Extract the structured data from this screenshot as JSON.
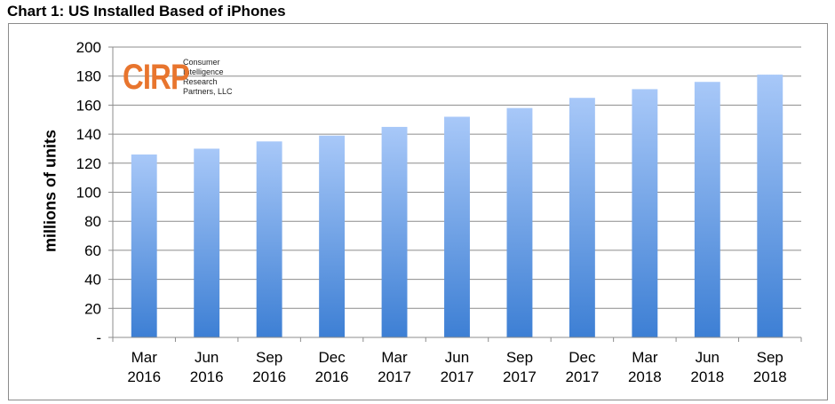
{
  "title": "Chart 1: US Installed Based of iPhones",
  "logo": {
    "mark": "CIRP",
    "lines": [
      "Consumer",
      "Intelligence",
      "Research",
      "Partners, LLC"
    ]
  },
  "colors": {
    "bar_top": "#a8c8f8",
    "bar_bottom": "#3d7fd4",
    "grid": "#8c8c8c",
    "logo": "#e8752e"
  },
  "chart_data": {
    "type": "bar",
    "title": "Chart 1: US Installed Based of iPhones",
    "xlabel": "",
    "ylabel": "millions of units",
    "ylim": [
      0,
      200
    ],
    "y_ticks": [
      0,
      20,
      40,
      60,
      80,
      100,
      120,
      140,
      160,
      180,
      200
    ],
    "y_tick_labels": [
      "-",
      "20",
      "40",
      "60",
      "80",
      "100",
      "120",
      "140",
      "160",
      "180",
      "200"
    ],
    "grid": true,
    "categories": [
      [
        "Mar",
        "2016"
      ],
      [
        "Jun",
        "2016"
      ],
      [
        "Sep",
        "2016"
      ],
      [
        "Dec",
        "2016"
      ],
      [
        "Mar",
        "2017"
      ],
      [
        "Jun",
        "2017"
      ],
      [
        "Sep",
        "2017"
      ],
      [
        "Dec",
        "2017"
      ],
      [
        "Mar",
        "2018"
      ],
      [
        "Jun",
        "2018"
      ],
      [
        "Sep",
        "2018"
      ]
    ],
    "values": [
      126,
      130,
      135,
      139,
      145,
      152,
      158,
      165,
      171,
      176,
      181
    ]
  }
}
